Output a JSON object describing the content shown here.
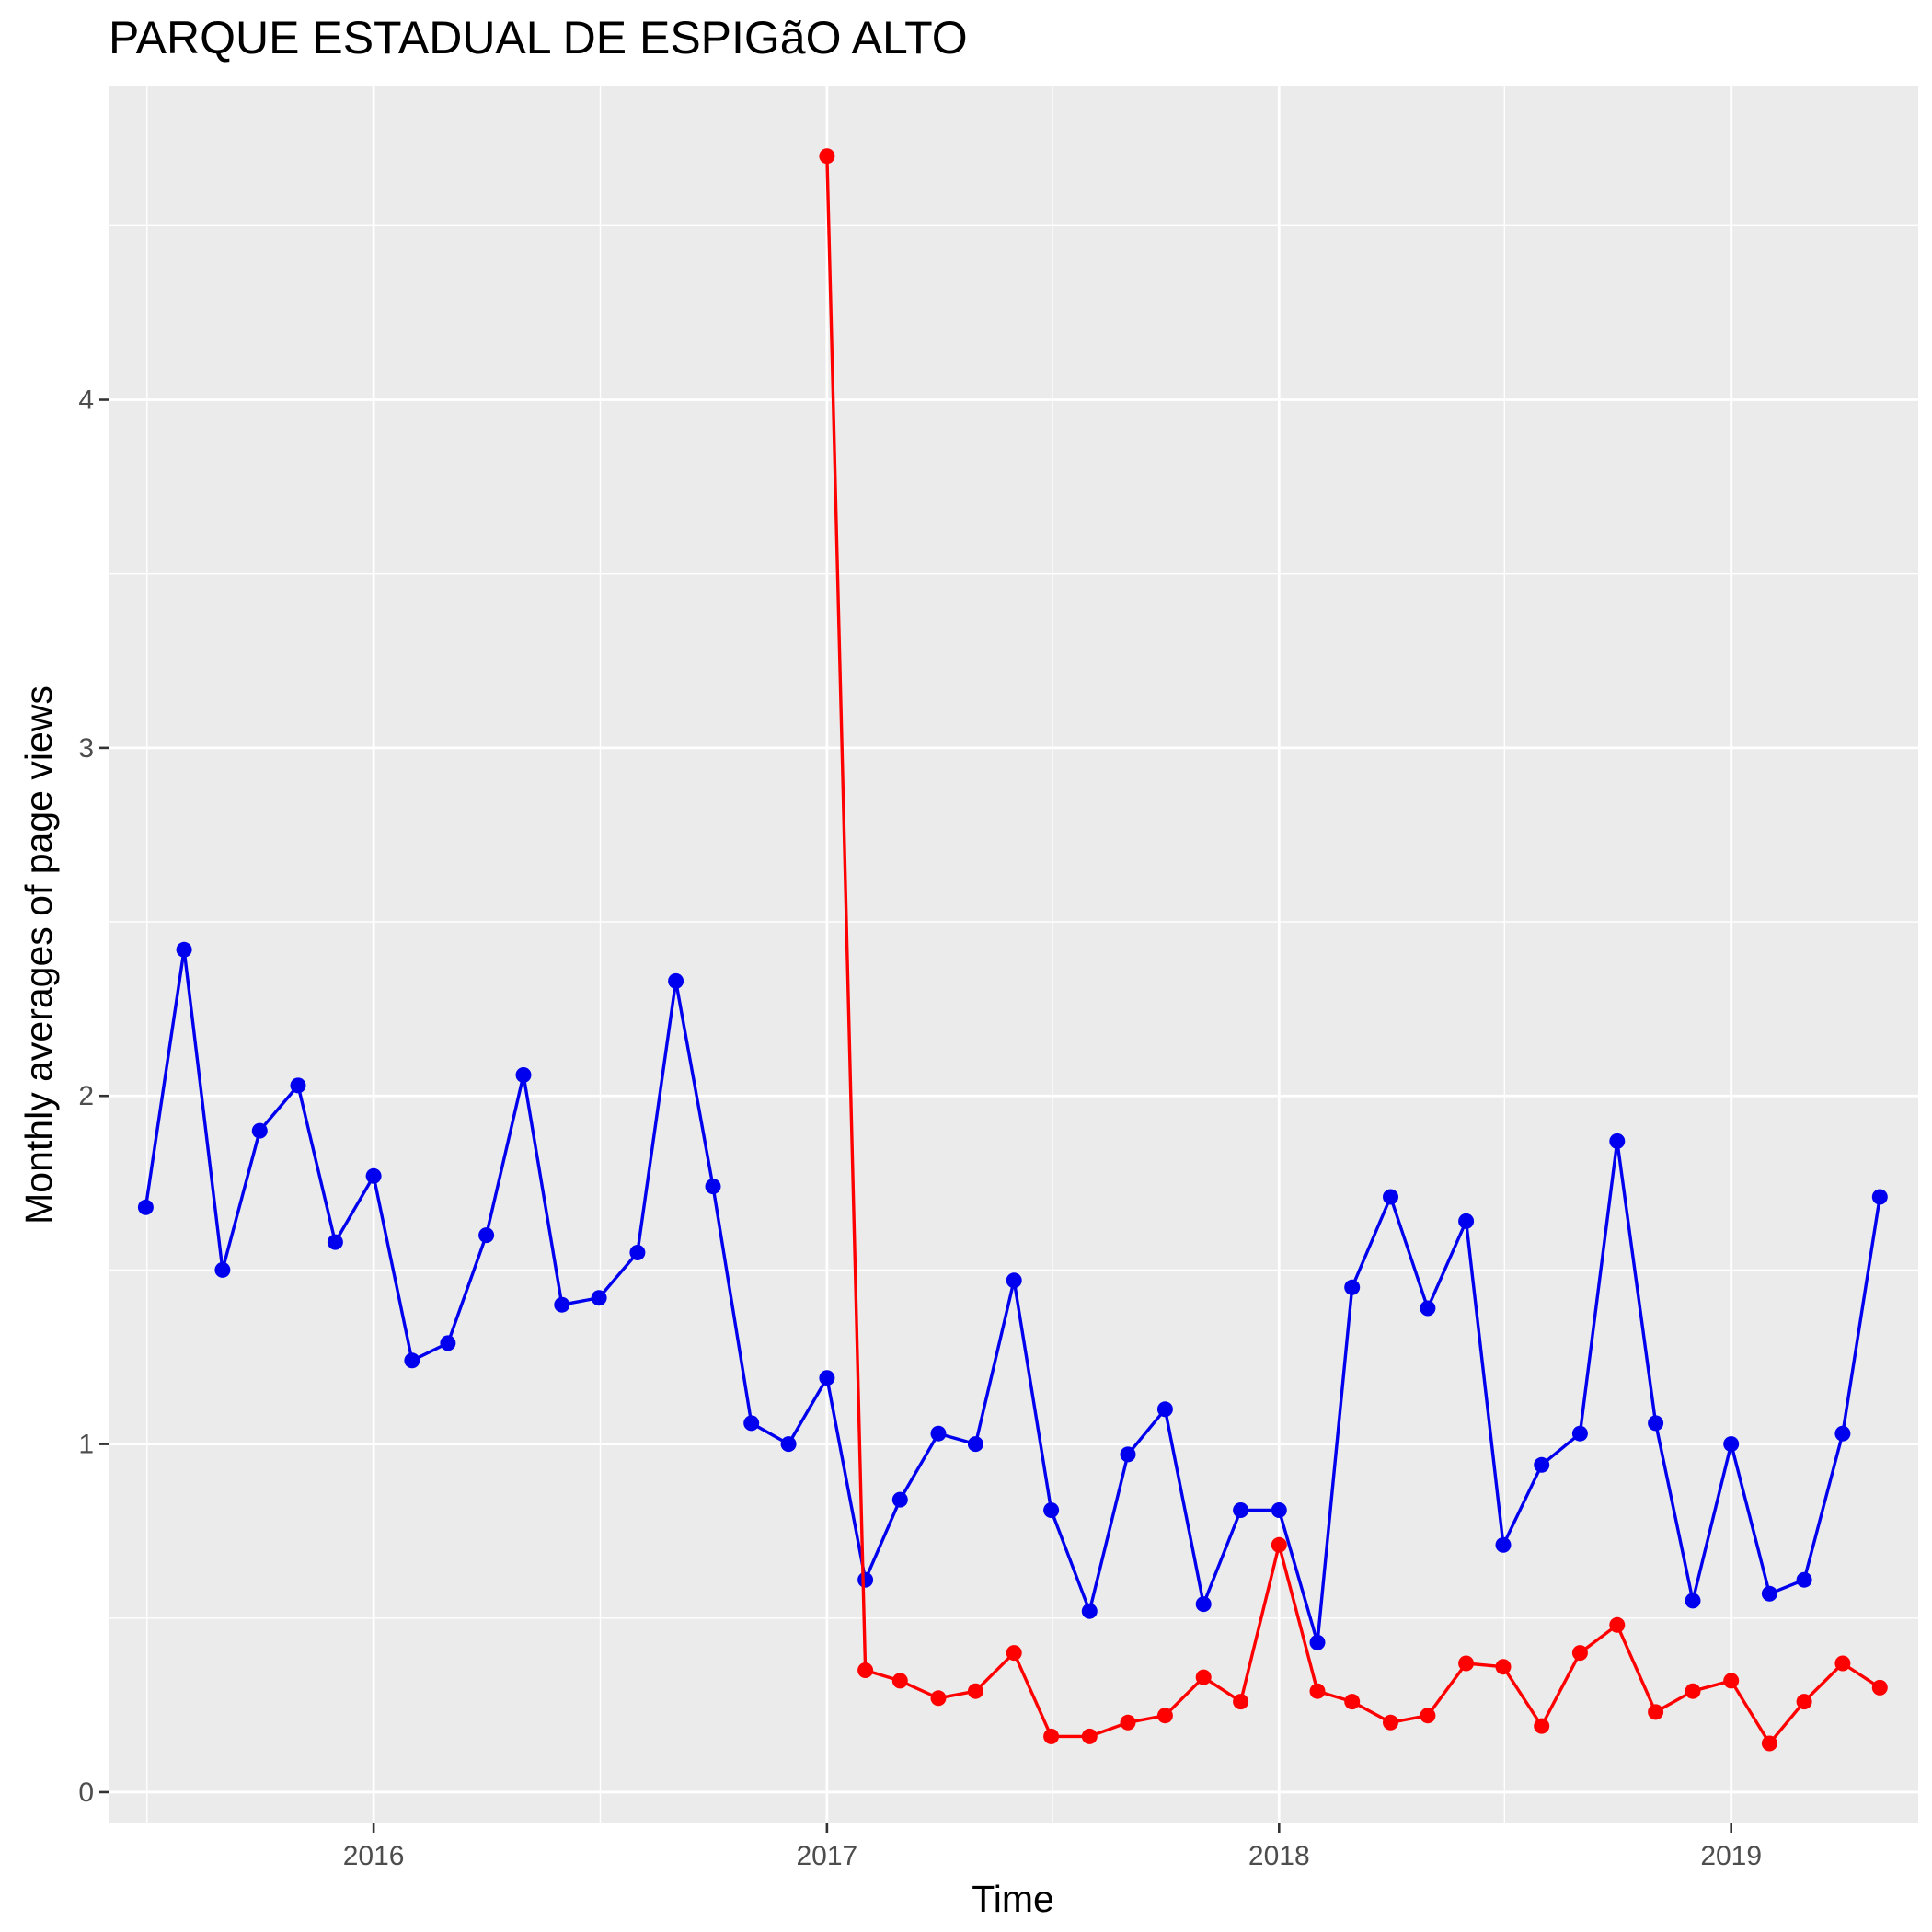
{
  "chart_data": {
    "type": "line",
    "title": "PARQUE ESTADUAL DE ESPIGãO ALTO",
    "xlabel": "Time",
    "ylabel": "Monthly averages of page views",
    "xlim": [
      "2015-06-01",
      "2019-06-01"
    ],
    "ylim": [
      -0.09,
      4.9
    ],
    "x_ticks": [
      {
        "value": "2016-01-01",
        "label": "2016"
      },
      {
        "value": "2017-01-01",
        "label": "2017"
      },
      {
        "value": "2018-01-01",
        "label": "2018"
      },
      {
        "value": "2019-01-01",
        "label": "2019"
      }
    ],
    "y_ticks": [
      0,
      1,
      2,
      3,
      4
    ],
    "grid": true,
    "legend": "none",
    "colors": {
      "panel_bg": "#ebebeb",
      "grid": "#ffffff",
      "blue_series": "#0000ee",
      "red_series": "#ff0000"
    },
    "series": [
      {
        "color": "#0000ee",
        "x": [
          "2015-07-01",
          "2015-08-01",
          "2015-09-01",
          "2015-10-01",
          "2015-11-01",
          "2015-12-01",
          "2016-01-01",
          "2016-02-01",
          "2016-03-01",
          "2016-04-01",
          "2016-05-01",
          "2016-06-01",
          "2016-07-01",
          "2016-08-01",
          "2016-09-01",
          "2016-10-01",
          "2016-11-01",
          "2016-12-01",
          "2017-01-01",
          "2017-02-01",
          "2017-03-01",
          "2017-04-01",
          "2017-05-01",
          "2017-06-01",
          "2017-07-01",
          "2017-08-01",
          "2017-09-01",
          "2017-10-01",
          "2017-11-01",
          "2017-12-01",
          "2018-01-01",
          "2018-02-01",
          "2018-03-01",
          "2018-04-01",
          "2018-05-01",
          "2018-06-01",
          "2018-07-01",
          "2018-08-01",
          "2018-09-01",
          "2018-10-01",
          "2018-11-01",
          "2018-12-01",
          "2019-01-01",
          "2019-02-01",
          "2019-03-01",
          "2019-04-01",
          "2019-05-01"
        ],
        "values": [
          1.68,
          2.42,
          1.5,
          1.9,
          2.03,
          1.58,
          1.77,
          1.24,
          1.29,
          1.6,
          2.06,
          1.4,
          1.42,
          1.55,
          2.33,
          1.74,
          1.06,
          1.0,
          1.19,
          0.61,
          0.84,
          1.03,
          1.0,
          1.47,
          0.81,
          0.52,
          0.97,
          1.1,
          0.54,
          0.81,
          0.81,
          0.43,
          1.45,
          1.71,
          1.39,
          1.64,
          0.71,
          0.94,
          1.03,
          1.87,
          1.06,
          0.55,
          1.0,
          0.57,
          0.61,
          1.03,
          1.71
        ]
      },
      {
        "color": "#ff0000",
        "x": [
          "2017-01-01",
          "2017-02-01",
          "2017-03-01",
          "2017-04-01",
          "2017-05-01",
          "2017-06-01",
          "2017-07-01",
          "2017-08-01",
          "2017-09-01",
          "2017-10-01",
          "2017-11-01",
          "2017-12-01",
          "2018-01-01",
          "2018-02-01",
          "2018-03-01",
          "2018-04-01",
          "2018-05-01",
          "2018-06-01",
          "2018-07-01",
          "2018-08-01",
          "2018-09-01",
          "2018-10-01",
          "2018-11-01",
          "2018-12-01",
          "2019-01-01",
          "2019-02-01",
          "2019-03-01",
          "2019-04-01",
          "2019-05-01"
        ],
        "values": [
          4.7,
          0.35,
          0.32,
          0.27,
          0.29,
          0.4,
          0.16,
          0.16,
          0.2,
          0.22,
          0.33,
          0.26,
          0.71,
          0.29,
          0.26,
          0.2,
          0.22,
          0.37,
          0.36,
          0.19,
          0.4,
          0.48,
          0.23,
          0.29,
          0.32,
          0.14,
          0.26,
          0.37,
          0.3
        ]
      }
    ]
  }
}
